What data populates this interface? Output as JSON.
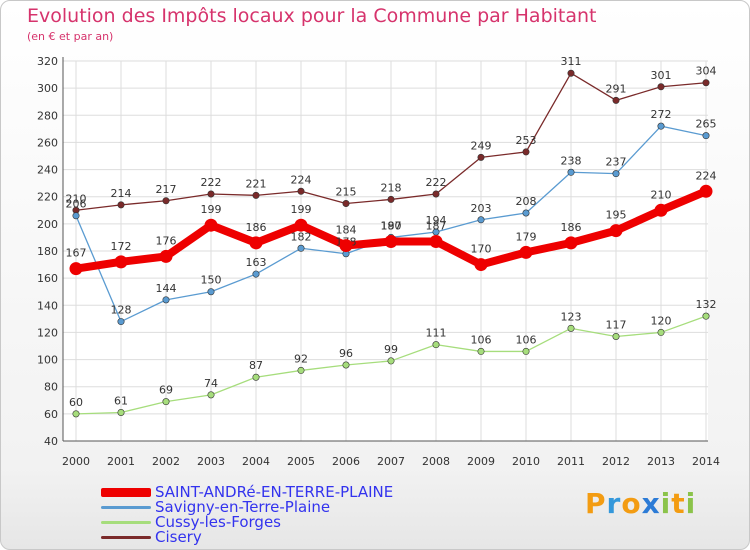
{
  "header": {
    "title": "Evolution des Impôts locaux pour la Commune par Habitant",
    "subtitle": "(en € et par an)"
  },
  "logo": {
    "letters": [
      "P",
      "r",
      "o",
      "x",
      "i",
      "t",
      "i"
    ],
    "colors": [
      "#f39c12",
      "#3498db",
      "#f39c12",
      "#2c7bd6",
      "#8bc34a",
      "#f39c12",
      "#8bc34a"
    ]
  },
  "chart_data": {
    "type": "line",
    "x": [
      2000,
      2001,
      2002,
      2003,
      2004,
      2005,
      2006,
      2007,
      2008,
      2009,
      2010,
      2011,
      2012,
      2013,
      2014
    ],
    "ylim": [
      40,
      320
    ],
    "yticks": [
      40,
      60,
      80,
      100,
      120,
      140,
      160,
      180,
      200,
      220,
      240,
      260,
      280,
      300,
      320
    ],
    "grid": true,
    "legend_position": "bottom-left",
    "series": [
      {
        "name": "Cisery",
        "color": "#7a2a2a",
        "width": 1.3,
        "values": [
          210,
          214,
          217,
          222,
          221,
          224,
          215,
          218,
          222,
          249,
          253,
          311,
          291,
          301,
          304
        ]
      },
      {
        "name": "Cussy-les-Forges",
        "color": "#a6dd7c",
        "width": 1.3,
        "values": [
          60,
          61,
          69,
          74,
          87,
          92,
          96,
          99,
          111,
          106,
          106,
          123,
          117,
          120,
          132
        ]
      },
      {
        "name": "Savigny-en-Terre-Plaine",
        "color": "#5a9bd1",
        "width": 1.3,
        "values": [
          206,
          128,
          144,
          150,
          163,
          182,
          178,
          190,
          194,
          203,
          208,
          238,
          237,
          272,
          265
        ]
      },
      {
        "name": "SAINT-ANDRé-EN-TERRE-PLAINE",
        "color": "#ee0000",
        "width": 8,
        "values": [
          167,
          172,
          176,
          199,
          186,
          199,
          184,
          187,
          187,
          170,
          179,
          186,
          195,
          210,
          224
        ]
      }
    ],
    "legend_order": [
      "SAINT-ANDRé-EN-TERRE-PLAINE",
      "Savigny-en-Terre-Plaine",
      "Cussy-les-Forges",
      "Cisery"
    ]
  }
}
